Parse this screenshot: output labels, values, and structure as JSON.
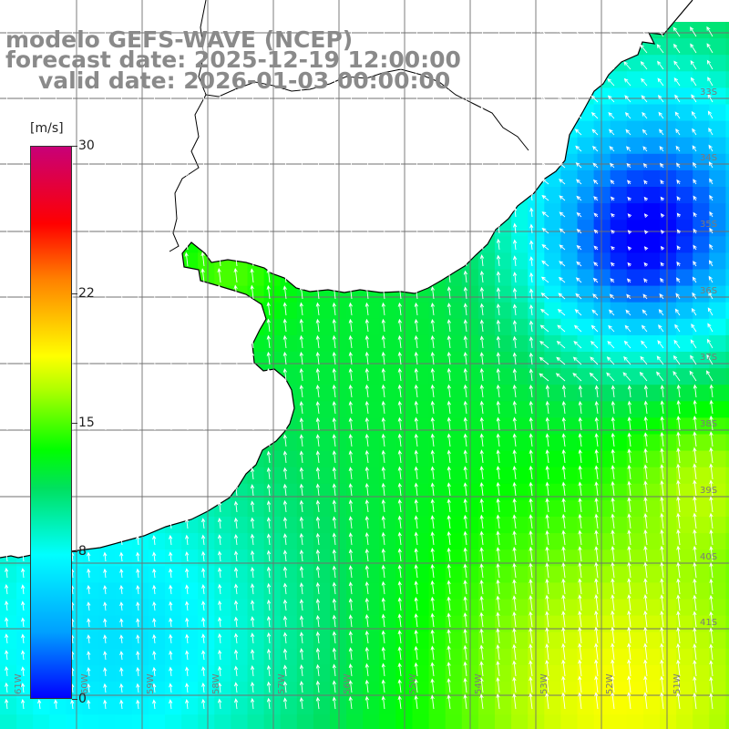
{
  "header": {
    "line1": "modelo GEFS-WAVE (NCEP)",
    "line2": "forecast date: 2025-12-19 12:00:00",
    "line3": "valid date: 2026-01-03 00:00:00"
  },
  "colorbar": {
    "unit": "[m/s]",
    "ticks": [
      "30",
      "22",
      "15",
      "8",
      "0"
    ],
    "tick_values": [
      30,
      22,
      15,
      8,
      0
    ],
    "colors": [
      "#0000ff",
      "#00a0ff",
      "#00ffff",
      "#00e060",
      "#00ff00",
      "#b0ff00",
      "#ffff00",
      "#ff8000",
      "#ff0000",
      "#c80078"
    ]
  },
  "map": {
    "lon_labels": [
      "61W",
      "60W",
      "59W",
      "58W",
      "57W",
      "56W",
      "55W",
      "54W",
      "53W",
      "52W",
      "51W"
    ],
    "lat_labels": [
      "33S",
      "34S",
      "35S",
      "36S",
      "37S",
      "38S",
      "39S",
      "40S",
      "41S"
    ],
    "land_color": "#ffffff",
    "grid_color": "#707070",
    "arrow_color": "#ffffff"
  }
}
